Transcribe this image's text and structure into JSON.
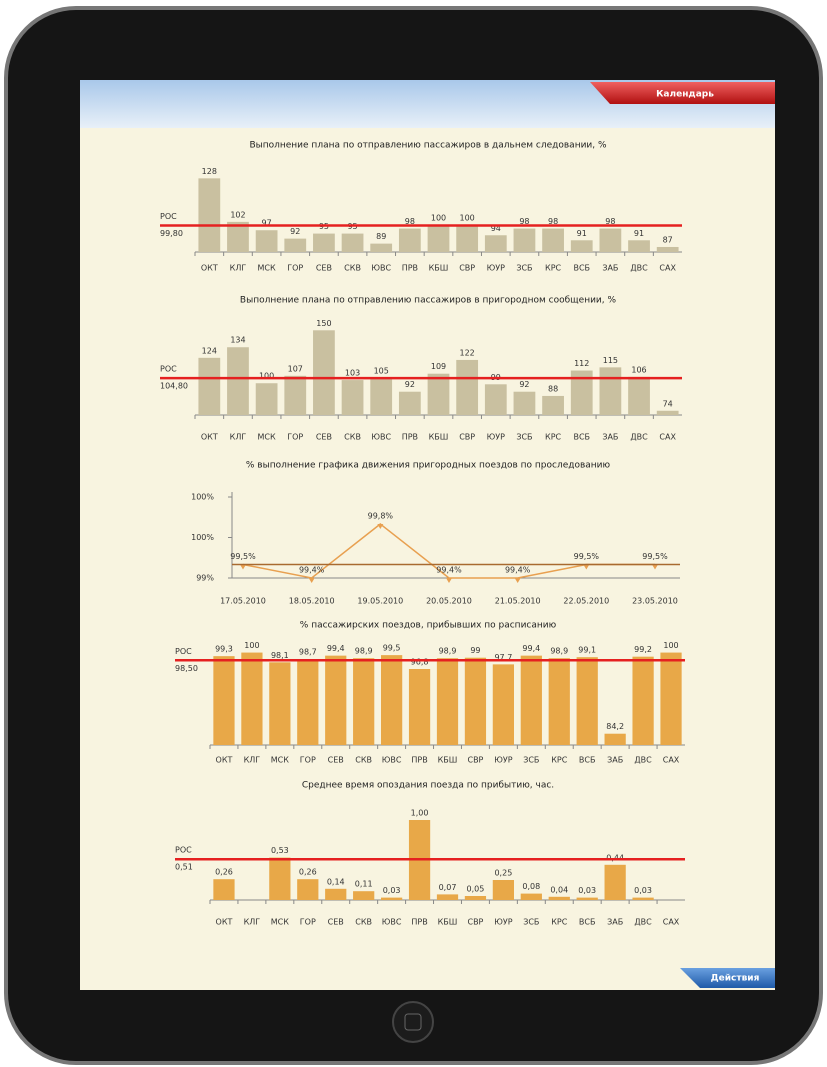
{
  "header": {
    "button": "Календарь"
  },
  "footer": {
    "button": "Действия"
  },
  "chart_data": [
    {
      "type": "bar",
      "title": "Выполнение плана по отправлению пассажиров в дальнем следовании, %",
      "categories": [
        "ОКТ",
        "КЛГ",
        "МСК",
        "ГОР",
        "СЕВ",
        "СКВ",
        "ЮВС",
        "ПРВ",
        "КБШ",
        "СВР",
        "ЮУР",
        "ЗСБ",
        "КРС",
        "ВСБ",
        "ЗАБ",
        "ДВС",
        "САХ"
      ],
      "values": [
        128,
        102,
        97,
        92,
        95,
        95,
        89,
        98,
        100,
        100,
        94,
        98,
        98,
        91,
        98,
        91,
        87
      ],
      "color": "#c9c0a0",
      "ylim": [
        84,
        130
      ],
      "reference": {
        "name": "РОС",
        "value": 99.8,
        "label": "99,80",
        "color": "#e52020"
      }
    },
    {
      "type": "bar",
      "title": "Выполнение плана по отправлению пассажиров в пригородном сообщении, %",
      "categories": [
        "ОКТ",
        "КЛГ",
        "МСК",
        "ГОР",
        "СЕВ",
        "СКВ",
        "ЮВС",
        "ПРВ",
        "КБШ",
        "СВР",
        "ЮУР",
        "ЗСБ",
        "КРС",
        "ВСБ",
        "ЗАБ",
        "ДВС",
        "САХ"
      ],
      "values": [
        124,
        134,
        100,
        107,
        150,
        103,
        105,
        92,
        109,
        122,
        99,
        92,
        88,
        112,
        115,
        106,
        74
      ],
      "color": "#c9c0a0",
      "ylim": [
        70,
        155
      ],
      "reference": {
        "name": "РОС",
        "value": 104.8,
        "label": "104,80",
        "color": "#e52020"
      }
    },
    {
      "type": "line",
      "title": "% выполнение графика движения пригородных поездов по проследованию",
      "x": [
        "17.05.2010",
        "18.05.2010",
        "19.05.2010",
        "20.05.2010",
        "21.05.2010",
        "22.05.2010",
        "23.05.2010"
      ],
      "values": [
        99.5,
        99.4,
        99.8,
        99.4,
        99.4,
        99.5,
        99.5
      ],
      "value_labels": [
        "99,5%",
        "99,4%",
        "99,8%",
        "99,4%",
        "99,4%",
        "99,5%",
        "99,5%"
      ],
      "color": "#e8a050",
      "ylim": [
        99.4,
        100
      ],
      "yticks": [
        {
          "value": 99.4,
          "label": "99%"
        },
        {
          "value": 99.7,
          "label": "100%"
        },
        {
          "value": 100,
          "label": "100%"
        }
      ],
      "reference": {
        "value": 99.5,
        "color": "#a86a30"
      }
    },
    {
      "type": "bar",
      "title": "% пассажирских поездов, прибывших по расписанию",
      "categories": [
        "ОКТ",
        "КЛГ",
        "МСК",
        "ГОР",
        "СЕВ",
        "СКВ",
        "ЮВС",
        "ПРВ",
        "КБШ",
        "СВР",
        "ЮУР",
        "ЗСБ",
        "КРС",
        "ВСБ",
        "ЗАБ",
        "ДВС",
        "САХ"
      ],
      "values": [
        99.3,
        100,
        98.1,
        98.7,
        99.4,
        98.9,
        99.5,
        96.8,
        98.9,
        99,
        97.7,
        99.4,
        98.9,
        99.1,
        84.2,
        99.2,
        100
      ],
      "value_labels": [
        "99,3",
        "100",
        "98,1",
        "98,7",
        "99,4",
        "98,9",
        "99,5",
        "96,8",
        "98,9",
        "99",
        "97,7",
        "99,4",
        "98,9",
        "99,1",
        "84,2",
        "99,2",
        "100"
      ],
      "color": "#e8a848",
      "ylim": [
        82,
        100.5
      ],
      "reference": {
        "name": "РОС",
        "value": 98.5,
        "label": "98,50",
        "color": "#e52020"
      }
    },
    {
      "type": "bar",
      "title": "Среднее время опоздания поезда по прибытию, час.",
      "categories": [
        "ОКТ",
        "КЛГ",
        "МСК",
        "ГОР",
        "СЕВ",
        "СКВ",
        "ЮВС",
        "ПРВ",
        "КБШ",
        "СВР",
        "ЮУР",
        "ЗСБ",
        "КРС",
        "ВСБ",
        "ЗАБ",
        "ДВС",
        "САХ"
      ],
      "values": [
        0.26,
        null,
        0.53,
        0.26,
        0.14,
        0.11,
        0.03,
        1.0,
        0.07,
        0.05,
        0.25,
        0.08,
        0.04,
        0.03,
        0.44,
        0.03,
        null
      ],
      "value_labels": [
        "0,26",
        null,
        "0,53",
        "0,26",
        "0,14",
        "0,11",
        "0,03",
        "1,00",
        "0,07",
        "0,05",
        "0,25",
        "0,08",
        "0,04",
        "0,03",
        "0,44",
        "0,03",
        null
      ],
      "color": "#e8a848",
      "ylim": [
        0,
        1
      ],
      "reference": {
        "name": "РОС",
        "value": 0.51,
        "label": "0,51",
        "color": "#e52020"
      }
    }
  ]
}
